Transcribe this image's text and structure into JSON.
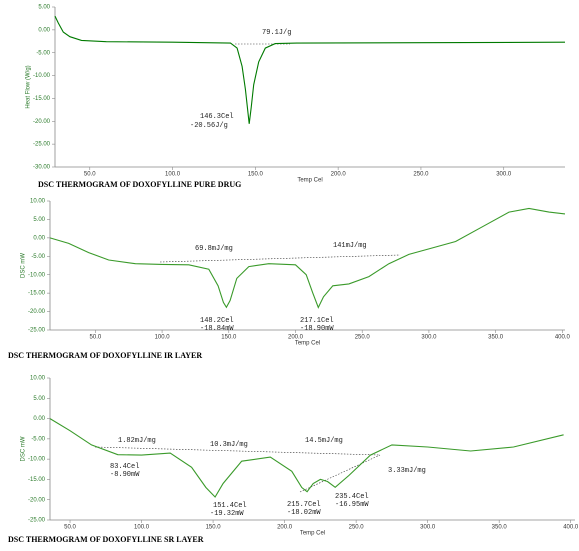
{
  "chart_data": [
    {
      "type": "line",
      "caption": "DSC THERMOGRAM OF DOXOFYLLINE PURE DRUG",
      "x_label": "Temp Cel",
      "y_label": "Heat Flow (W/g)",
      "color": "#007a00",
      "x": [
        29,
        31,
        34,
        38,
        45,
        60,
        100,
        135,
        139,
        142,
        144,
        145.5,
        146.3,
        147.5,
        149,
        152,
        156,
        162,
        175,
        250,
        337
      ],
      "values": [
        3,
        1.5,
        -0.5,
        -1.5,
        -2.3,
        -2.6,
        -2.7,
        -2.9,
        -4,
        -8,
        -13,
        -18,
        -20.56,
        -17,
        -12,
        -7,
        -4,
        -3,
        -2.9,
        -2.8,
        -2.7
      ],
      "xlim": [
        29,
        337
      ],
      "ylim": [
        -30,
        5
      ],
      "xticks": [
        {
          "value": 50,
          "label": "50.0"
        },
        {
          "value": 100,
          "label": "100.0"
        },
        {
          "value": 150,
          "label": "150.0"
        },
        {
          "value": 200,
          "label": "200.0"
        },
        {
          "value": 250,
          "label": "250.0"
        },
        {
          "value": 300,
          "label": "300.0"
        }
      ],
      "yticks": [
        {
          "value": 5,
          "label": "5.00"
        },
        {
          "value": 0,
          "label": "0.00"
        },
        {
          "value": -5,
          "label": "-5.00"
        },
        {
          "value": -10,
          "label": "-10.00"
        },
        {
          "value": -15,
          "label": "-15.00"
        },
        {
          "value": -20,
          "label": "-20.00"
        },
        {
          "value": -25,
          "label": "-25.00"
        },
        {
          "value": -30,
          "label": "-30.00"
        }
      ],
      "annotations": [
        "79.1J/g",
        "146.3Cel",
        "-20.56J/g"
      ]
    },
    {
      "type": "line",
      "caption": "DSC THERMOGRAM OF DOXOFYLLINE IR LAYER",
      "x_label": "Temp Cel",
      "y_label": "DSC mW",
      "color": "#3a9a2a",
      "x": [
        16,
        30,
        45,
        60,
        80,
        100,
        120,
        135,
        142,
        146,
        148.2,
        151,
        156,
        165,
        180,
        200,
        208,
        213,
        217.1,
        221,
        228,
        240,
        255,
        270,
        285,
        300,
        320,
        340,
        360,
        375,
        390,
        402
      ],
      "values": [
        0,
        -1.5,
        -4,
        -6,
        -7,
        -7.2,
        -7.3,
        -8.5,
        -13,
        -17.5,
        -18.84,
        -17,
        -11,
        -7.8,
        -7,
        -7.3,
        -10,
        -15,
        -18.9,
        -16,
        -13,
        -12.5,
        -10.5,
        -7,
        -4.5,
        -3,
        -1,
        3,
        7,
        8,
        7,
        6.5
      ],
      "xlim": [
        16,
        402
      ],
      "ylim": [
        -25,
        10
      ],
      "xticks": [
        {
          "value": 50,
          "label": "50.0"
        },
        {
          "value": 100,
          "label": "100.0"
        },
        {
          "value": 150,
          "label": "150.0"
        },
        {
          "value": 200,
          "label": "200.0"
        },
        {
          "value": 250,
          "label": "250.0"
        },
        {
          "value": 300,
          "label": "300.0"
        },
        {
          "value": 350,
          "label": "350.0"
        },
        {
          "value": 400,
          "label": "400.0"
        }
      ],
      "yticks": [
        {
          "value": 10,
          "label": "10.00"
        },
        {
          "value": 5,
          "label": "5.00"
        },
        {
          "value": 0,
          "label": "0.00"
        },
        {
          "value": -5,
          "label": "-5.00"
        },
        {
          "value": -10,
          "label": "-10.00"
        },
        {
          "value": -15,
          "label": "-15.00"
        },
        {
          "value": -20,
          "label": "-20.00"
        },
        {
          "value": -25,
          "label": "-25.00"
        }
      ],
      "annotations": [
        "69.8mJ/mg",
        "141mJ/mg",
        "148.2Cel",
        "-18.84mW",
        "217.1Cel",
        "-18.90mW"
      ]
    },
    {
      "type": "line",
      "caption": "DSC THERMOGRAM OF DOXOFYLLINE SR LAYER",
      "x_label": "Temp Cel",
      "y_label": "DSC mW",
      "color": "#3a9a2a",
      "x": [
        36,
        50,
        65,
        83.4,
        100,
        120,
        135,
        145,
        151.4,
        157,
        170,
        190,
        205,
        212,
        215.7,
        220,
        225,
        230,
        235.4,
        245,
        260,
        275,
        300,
        330,
        360,
        395
      ],
      "values": [
        0,
        -3,
        -6.5,
        -8.9,
        -9,
        -8.5,
        -12,
        -17,
        -19.32,
        -16,
        -10.5,
        -9.5,
        -13,
        -17,
        -18.02,
        -16,
        -15,
        -15.5,
        -16.95,
        -14,
        -9,
        -6.5,
        -7,
        -8,
        -7,
        -4
      ],
      "xlim": [
        36,
        403
      ],
      "ylim": [
        -25,
        10
      ],
      "xticks": [
        {
          "value": 50,
          "label": "50.0"
        },
        {
          "value": 100,
          "label": "100.0"
        },
        {
          "value": 150,
          "label": "150.0"
        },
        {
          "value": 200,
          "label": "200.0"
        },
        {
          "value": 250,
          "label": "250.0"
        },
        {
          "value": 300,
          "label": "300.0"
        },
        {
          "value": 350,
          "label": "350.0"
        },
        {
          "value": 400,
          "label": "400.0"
        }
      ],
      "yticks": [
        {
          "value": 10,
          "label": "10.00"
        },
        {
          "value": 5,
          "label": "5.00"
        },
        {
          "value": 0,
          "label": "0.00"
        },
        {
          "value": -5,
          "label": "-5.00"
        },
        {
          "value": -10,
          "label": "-10.00"
        },
        {
          "value": -15,
          "label": "-15.00"
        },
        {
          "value": -20,
          "label": "-20.00"
        },
        {
          "value": -25,
          "label": "-25.00"
        }
      ],
      "annotations": [
        "1.82mJ/mg",
        "10.3mJ/mg",
        "14.5mJ/mg",
        "83.4Cel",
        "-8.90mW",
        "151.4Cel",
        "-19.32mW",
        "215.7Cel",
        "-18.02mW",
        "235.4Cel",
        "-16.95mW",
        "3.33mJ/mg"
      ]
    }
  ]
}
